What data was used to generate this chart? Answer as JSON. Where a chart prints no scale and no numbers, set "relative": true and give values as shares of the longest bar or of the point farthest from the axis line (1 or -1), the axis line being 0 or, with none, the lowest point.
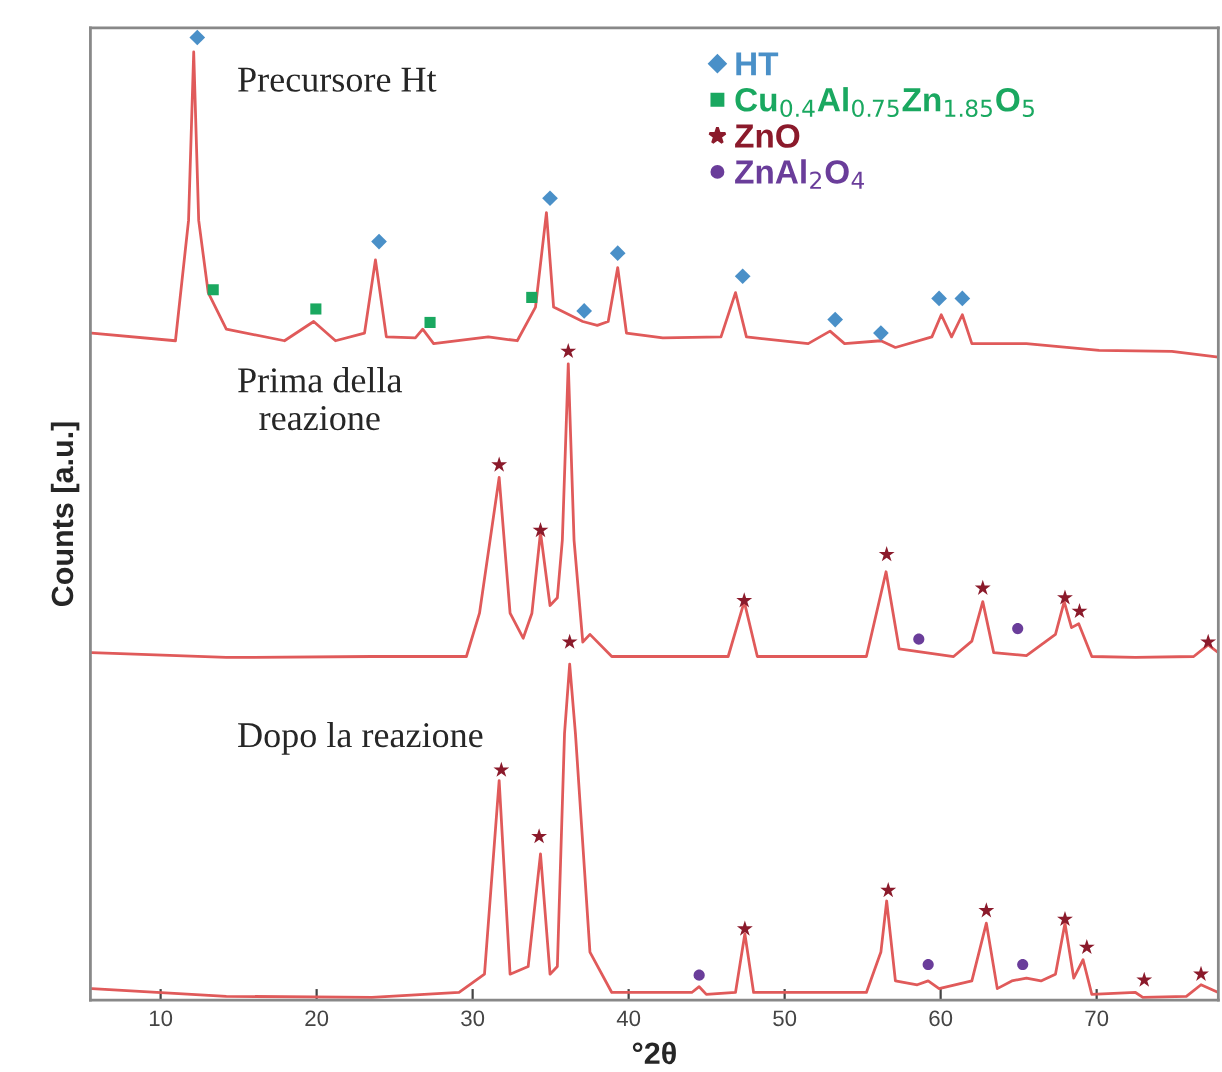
{
  "chart_data": {
    "type": "line",
    "relative": true,
    "xlabel": "°2θ",
    "ylabel": "Counts [a.u.]",
    "xlim": [
      5.5,
      77.8
    ],
    "xticks": [
      10,
      20,
      30,
      40,
      50,
      60,
      70
    ],
    "grid": false,
    "legend": "top right",
    "annotations": [
      "Precursore Ht",
      "Prima della\nreazione",
      "Dopo la reazione"
    ],
    "series": [
      {
        "color": "#e05a5a",
        "x": [
          5.59,
          10.95,
          11.79,
          12.12,
          12.44,
          13.05,
          14.21,
          17.94,
          19.81,
          21.21,
          23.07,
          23.77,
          24.47,
          26.33,
          26.8,
          27.5,
          31.0,
          32.86,
          34.03,
          34.73,
          35.19,
          37.06,
          37.99,
          38.69,
          39.3,
          39.86,
          42.19,
          45.92,
          46.85,
          47.55,
          51.51,
          52.91,
          53.84,
          56.17,
          57.1,
          59.44,
          60.04,
          60.7,
          61.39,
          62.0,
          65.5,
          70.16,
          74.82,
          77.8
        ],
        "values": [
          0.693,
          0.685,
          0.81,
          0.985,
          0.81,
          0.735,
          0.697,
          0.685,
          0.705,
          0.685,
          0.693,
          0.769,
          0.689,
          0.688,
          0.697,
          0.682,
          0.689,
          0.685,
          0.72,
          0.818,
          0.72,
          0.705,
          0.701,
          0.705,
          0.761,
          0.693,
          0.688,
          0.689,
          0.735,
          0.689,
          0.682,
          0.695,
          0.682,
          0.685,
          0.678,
          0.689,
          0.712,
          0.689,
          0.712,
          0.682,
          0.682,
          0.675,
          0.674,
          0.668
        ]
      },
      {
        "color": "#e05a5a",
        "x": [
          5.59,
          14.21,
          23.54,
          29.6,
          30.44,
          31.7,
          32.4,
          33.24,
          33.8,
          34.35,
          34.96,
          35.43,
          35.75,
          36.13,
          36.5,
          37.06,
          37.52,
          38.92,
          46.38,
          47.41,
          48.25,
          55.24,
          56.5,
          57.34,
          60.83,
          62.0,
          62.7,
          63.4,
          65.5,
          67.36,
          67.92,
          68.39,
          68.85,
          69.69,
          72.49,
          76.22,
          77.15,
          77.8
        ],
        "values": [
          0.361,
          0.356,
          0.357,
          0.357,
          0.402,
          0.543,
          0.402,
          0.376,
          0.402,
          0.486,
          0.41,
          0.418,
          0.478,
          0.661,
          0.478,
          0.372,
          0.38,
          0.357,
          0.357,
          0.414,
          0.357,
          0.357,
          0.445,
          0.365,
          0.357,
          0.373,
          0.414,
          0.361,
          0.358,
          0.38,
          0.414,
          0.387,
          0.391,
          0.357,
          0.356,
          0.357,
          0.369,
          0.361
        ]
      },
      {
        "color": "#e05a5a",
        "x": [
          5.59,
          14.21,
          23.54,
          29.13,
          30.76,
          31.7,
          32.4,
          33.56,
          34.35,
          34.96,
          35.43,
          35.89,
          36.22,
          36.59,
          37.52,
          38.92,
          44.05,
          44.52,
          44.98,
          46.85,
          47.45,
          48.01,
          55.24,
          56.17,
          56.54,
          57.1,
          58.5,
          59.2,
          59.9,
          62.0,
          62.93,
          63.63,
          64.56,
          65.5,
          66.43,
          67.36,
          67.97,
          68.53,
          69.13,
          69.69,
          72.49,
          72.96,
          75.75,
          76.69,
          77.8
        ],
        "values": [
          0.012,
          0.004,
          0.003,
          0.008,
          0.027,
          0.228,
          0.027,
          0.035,
          0.152,
          0.027,
          0.035,
          0.277,
          0.349,
          0.277,
          0.05,
          0.008,
          0.008,
          0.014,
          0.006,
          0.008,
          0.069,
          0.008,
          0.008,
          0.05,
          0.103,
          0.02,
          0.016,
          0.02,
          0.012,
          0.02,
          0.08,
          0.012,
          0.02,
          0.023,
          0.02,
          0.027,
          0.08,
          0.023,
          0.042,
          0.006,
          0.008,
          0.003,
          0.004,
          0.016,
          0.008
        ]
      },
      {
        "type": "scatter",
        "name": "HT",
        "color": "#4a90c8",
        "marker": "diamond",
        "x": [
          12.35,
          24.0,
          34.96,
          37.15,
          39.3,
          47.31,
          53.24,
          56.17,
          59.9,
          61.39
        ],
        "values": [
          1.0,
          0.788,
          0.833,
          0.716,
          0.776,
          0.752,
          0.707,
          0.693,
          0.729,
          0.729
        ]
      },
      {
        "type": "scatter",
        "name": "Cu$_{0.4}$Al$_{0.75}$Zn$_{1.85}$O$_{5}$",
        "color": "#1aa860",
        "marker": "square",
        "x": [
          13.37,
          19.95,
          27.27,
          33.79
        ],
        "values": [
          0.738,
          0.718,
          0.704,
          0.73
        ]
      },
      {
        "type": "scatter",
        "name": "ZnO",
        "color": "#8b1a2b",
        "marker": "star",
        "x": [
          36.13,
          31.7,
          34.35,
          47.41,
          56.54,
          62.7,
          67.97,
          68.9,
          77.15,
          36.22,
          31.84,
          34.26,
          47.45,
          56.64,
          62.93,
          67.97,
          69.37,
          73.05,
          76.69
        ],
        "values": [
          0.674,
          0.556,
          0.488,
          0.415,
          0.463,
          0.428,
          0.418,
          0.404,
          0.372,
          0.372,
          0.239,
          0.17,
          0.074,
          0.114,
          0.093,
          0.084,
          0.055,
          0.021,
          0.027
        ]
      },
      {
        "type": "scatter",
        "name": "ZnAl$_{2}$O$_{4}$",
        "color": "#6a3d9a",
        "marker": "circle",
        "x": [
          58.6,
          64.94,
          44.52,
          59.2,
          65.26
        ],
        "values": [
          0.375,
          0.386,
          0.026,
          0.037,
          0.037
        ]
      }
    ]
  }
}
